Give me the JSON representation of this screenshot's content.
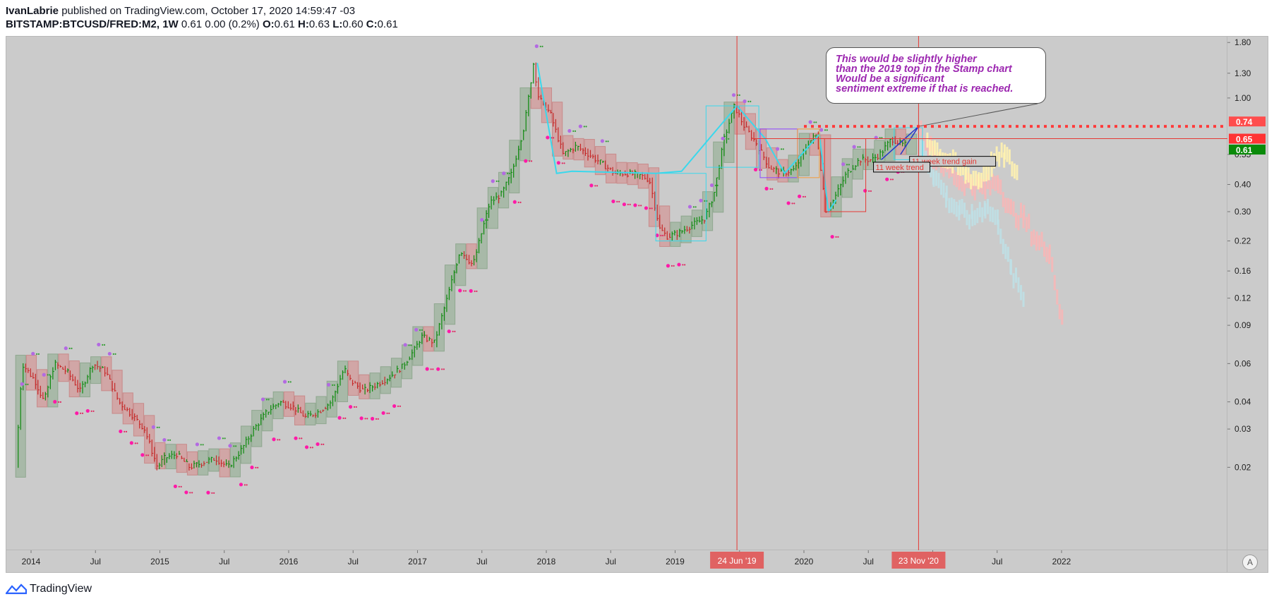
{
  "header": {
    "author": "IvanLabrie",
    "published_text": "published on TradingView.com, October 17, 2020 14:59:47 -03",
    "symbol": "BITSTAMP:BTCUSD/FRED:M2, 1W",
    "quote": "0.61 0.00 (0.2%)",
    "o_label": "O:",
    "o_value": "0.61",
    "h_label": "H:",
    "h_value": "0.63",
    "l_label": "L:",
    "l_value": "0.60",
    "c_label": "C:",
    "c_value": "0.61"
  },
  "annotation": {
    "lines": [
      "This would be slightly higher",
      "than the 2019 top in the Stamp chart",
      "Would be a significant",
      "sentiment extreme if that is reached."
    ]
  },
  "labels": {
    "trend_label_1": "11 week trend gain",
    "trend_label_2": "11 week trend"
  },
  "price_markers": [
    {
      "value": "0.74",
      "color": "#ff4d4d"
    },
    {
      "value": "0.65",
      "color": "#ff3333"
    },
    {
      "value": "0.61",
      "color": "#0a8a0a"
    }
  ],
  "date_markers": [
    {
      "label": "24 Jun '19",
      "year": 2019.48
    },
    {
      "label": "23 Nov '20",
      "year": 2020.89
    }
  ],
  "footer": {
    "brand": "TradingView"
  },
  "colors": {
    "up": "#0e8a0e",
    "down": "#c62828",
    "cyan": "#3ad8ec",
    "vline": "#e53935",
    "annotation_text": "#9c27b0"
  },
  "chart_data": {
    "type": "line",
    "scale": "log",
    "title": "BITSTAMP:BTCUSD/FRED:M2, 1W",
    "x_ticks": [
      "2014",
      "Jul",
      "2015",
      "Jul",
      "2016",
      "Jul",
      "2017",
      "Jul",
      "2018",
      "Jul",
      "2019",
      "Jul",
      "2020",
      "Jul",
      "2021",
      "Jul",
      "2022"
    ],
    "x_tick_years": [
      2014.0,
      2014.5,
      2015.0,
      2015.5,
      2016.0,
      2016.5,
      2017.0,
      2017.5,
      2018.0,
      2018.5,
      2019.0,
      2019.5,
      2020.0,
      2020.5,
      2021.0,
      2021.5,
      2022.0
    ],
    "y_ticks": [
      1.8,
      1.3,
      1.0,
      0.55,
      0.4,
      0.3,
      0.22,
      0.16,
      0.12,
      0.09,
      0.06,
      0.04,
      0.03,
      0.02
    ],
    "y_tick_labels": [
      "1.80",
      "1.30",
      "1.00",
      "0.55",
      "0.40",
      "0.30",
      "0.22",
      "0.16",
      "0.12",
      "0.09",
      "0.06",
      "0.04",
      "0.03",
      "0.02"
    ],
    "ylim": [
      0.0095,
      1.9
    ],
    "xlim": [
      2013.85,
      2022.07
    ],
    "series": [
      {
        "x": [
          2013.9,
          2013.95,
          2014.05,
          2014.12,
          2014.2,
          2014.3,
          2014.4,
          2014.5,
          2014.6,
          2014.7,
          2014.8,
          2014.9,
          2015.0,
          2015.05,
          2015.15,
          2015.25,
          2015.35,
          2015.45,
          2015.55,
          2015.65,
          2015.75,
          2015.85,
          2015.95,
          2016.05,
          2016.15,
          2016.25,
          2016.35,
          2016.45,
          2016.5,
          2016.6,
          2016.7,
          2016.8,
          2016.9,
          2017.0,
          2017.05,
          2017.15,
          2017.25,
          2017.35,
          2017.45,
          2017.5,
          2017.58,
          2017.67,
          2017.75,
          2017.85,
          2017.92,
          2017.96,
          2018.05,
          2018.15,
          2018.25,
          2018.35,
          2018.45,
          2018.55,
          2018.65,
          2018.75,
          2018.82,
          2018.9,
          2018.96,
          2019.05,
          2019.15,
          2019.25,
          2019.32,
          2019.4,
          2019.48,
          2019.55,
          2019.65,
          2019.75,
          2019.85,
          2019.95,
          2020.05,
          2020.12,
          2020.19,
          2020.25,
          2020.35,
          2020.45,
          2020.55,
          2020.62,
          2020.7,
          2020.78
        ],
        "y": [
          0.02,
          0.06,
          0.05,
          0.04,
          0.06,
          0.055,
          0.045,
          0.06,
          0.055,
          0.04,
          0.035,
          0.03,
          0.02,
          0.022,
          0.023,
          0.02,
          0.021,
          0.022,
          0.02,
          0.024,
          0.03,
          0.036,
          0.04,
          0.038,
          0.034,
          0.036,
          0.04,
          0.057,
          0.05,
          0.045,
          0.048,
          0.052,
          0.058,
          0.07,
          0.08,
          0.075,
          0.12,
          0.2,
          0.17,
          0.22,
          0.33,
          0.36,
          0.45,
          0.75,
          1.45,
          1.0,
          0.85,
          0.55,
          0.6,
          0.55,
          0.5,
          0.45,
          0.45,
          0.44,
          0.42,
          0.25,
          0.23,
          0.24,
          0.26,
          0.28,
          0.36,
          0.65,
          0.92,
          0.75,
          0.62,
          0.48,
          0.45,
          0.47,
          0.62,
          0.68,
          0.3,
          0.34,
          0.45,
          0.52,
          0.52,
          0.56,
          0.65,
          0.61
        ]
      }
    ],
    "projections": [
      {
        "name": "",
        "color": "#f7b7b7",
        "x": [
          2020.9,
          2021.0,
          2021.1,
          2021.2,
          2021.3,
          2021.4,
          2021.5,
          2021.6,
          2021.7,
          2021.8,
          2021.9,
          2022.0
        ],
        "y": [
          0.7,
          0.55,
          0.48,
          0.42,
          0.4,
          0.38,
          0.42,
          0.3,
          0.28,
          0.22,
          0.2,
          0.09
        ]
      },
      {
        "name": "",
        "color": "#bfe0e6",
        "x": [
          2020.9,
          2021.0,
          2021.1,
          2021.2,
          2021.3,
          2021.4,
          2021.5,
          2021.6,
          2021.7
        ],
        "y": [
          0.6,
          0.45,
          0.35,
          0.3,
          0.28,
          0.32,
          0.27,
          0.16,
          0.12
        ]
      },
      {
        "name": "",
        "color": "#fff2b0",
        "x": [
          2020.95,
          2021.05,
          2021.15,
          2021.25,
          2021.35,
          2021.45,
          2021.55,
          2021.65
        ],
        "y": [
          0.65,
          0.55,
          0.5,
          0.45,
          0.42,
          0.5,
          0.55,
          0.45
        ]
      }
    ],
    "horizontal_levels": [
      0.74,
      0.65
    ],
    "grid": false,
    "legend": "none"
  }
}
